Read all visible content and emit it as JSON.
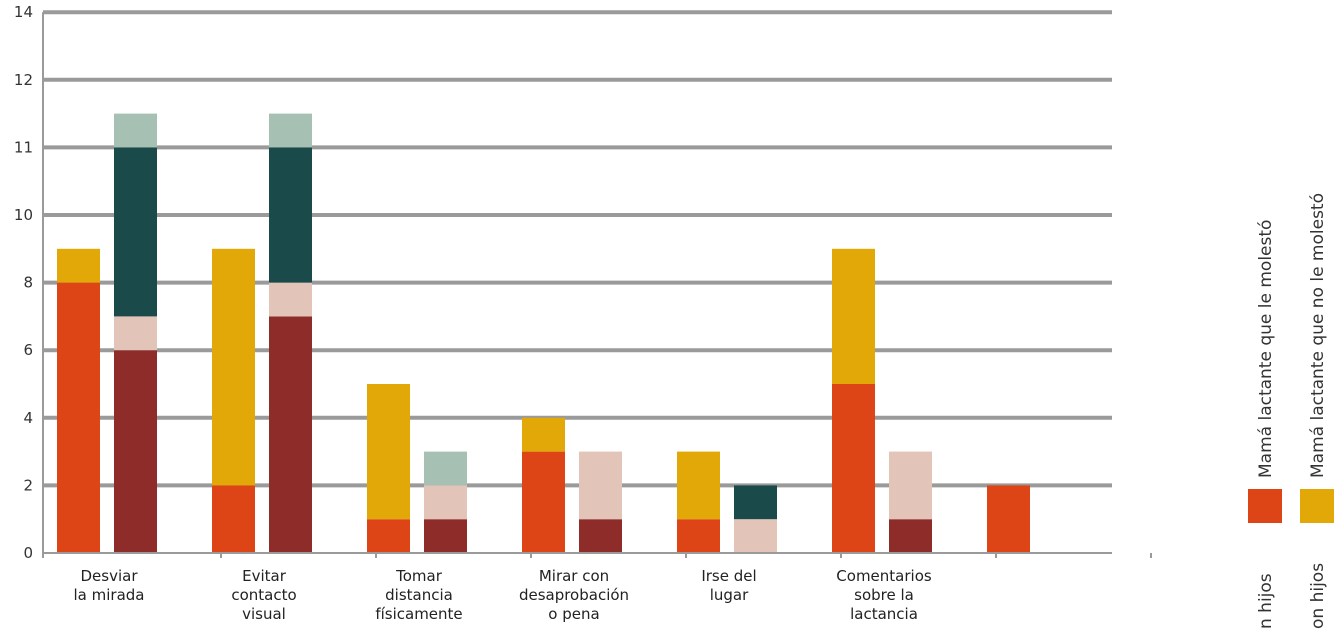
{
  "chart_data": {
    "type": "bar",
    "stacked": true,
    "y_ticks": [
      "0",
      "2",
      "4",
      "6",
      "8",
      "10",
      "11",
      "12",
      "14"
    ],
    "categories": [
      [
        "Desviar",
        "la mirada"
      ],
      [
        "Evitar",
        "contacto",
        "visual"
      ],
      [
        "Tomar",
        "distancia",
        "físicamente"
      ],
      [
        "Mirar con",
        "desaprobación",
        "o pena"
      ],
      [
        "Irse del",
        "lugar"
      ],
      [
        "Comentarios",
        "sobre la",
        "lactancia"
      ],
      []
    ],
    "groups": [
      {
        "name": "Mamá lactante que le molestó",
        "segments": [
          {
            "color": "#de4516",
            "values": [
              8,
              2,
              1,
              3,
              1,
              5,
              2
            ]
          },
          {
            "color": "#e2a808",
            "values": [
              1,
              7,
              4,
              1,
              2,
              4,
              0
            ]
          }
        ]
      },
      {
        "name": "Mamá lactante que no le molestó",
        "segments": [
          {
            "color": "#8e2c29",
            "values": [
              6,
              7,
              1,
              1,
              0,
              1,
              null
            ]
          },
          {
            "color": "#e3c4b9",
            "values": [
              1,
              1,
              1,
              2,
              1,
              2,
              null
            ]
          },
          {
            "color": "#1b4a4b",
            "values": [
              5,
              4,
              0,
              0,
              1,
              0,
              null
            ]
          },
          {
            "color": "#a7c0b4",
            "values": [
              1,
              1,
              1,
              0,
              0,
              0,
              null
            ]
          }
        ]
      }
    ],
    "legend": [
      {
        "color": "#de4516",
        "lines": [
          "Mamá lactante que le molestó",
          "n hijos"
        ]
      },
      {
        "color": "#e2a808",
        "lines": [
          "Mamá lactante que no le molestó",
          "on hijos"
        ]
      }
    ],
    "colors": {
      "grid": "#9a9a9a",
      "axis": "#9a9a9a"
    }
  }
}
